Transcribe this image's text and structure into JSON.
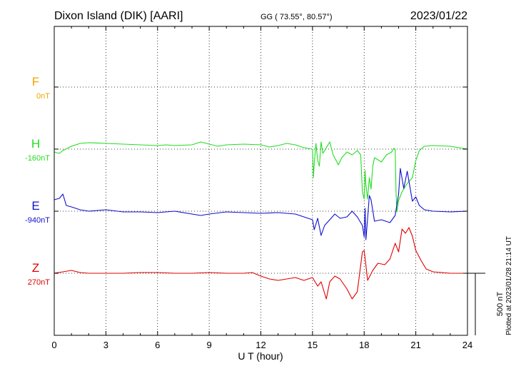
{
  "header": {
    "station": "Dixon Island (DIK)  [AARI]",
    "coords": "GG ( 73.55°,  80.57°)",
    "date": "2023/01/22"
  },
  "plotted_note": "Plotted at 2023/01/28 21:14 UT",
  "chart_data": {
    "type": "line",
    "xlabel": "U T (hour)",
    "xlim": [
      0,
      24
    ],
    "xticks": [
      0,
      3,
      6,
      9,
      12,
      15,
      18,
      21,
      24
    ],
    "scale_label": "500 nT",
    "colors": {
      "F": "#f0a500",
      "H": "#22dd22",
      "E": "#1010d0",
      "Z": "#e00000"
    },
    "components": [
      {
        "key": "F",
        "label": "F",
        "baseline": "0nT",
        "values": null
      },
      {
        "key": "H",
        "label": "H",
        "baseline": "-160nT",
        "points": [
          [
            0,
            -20
          ],
          [
            0.3,
            -30
          ],
          [
            0.5,
            -10
          ],
          [
            1,
            20
          ],
          [
            1.5,
            40
          ],
          [
            2,
            45
          ],
          [
            3,
            40
          ],
          [
            4,
            35
          ],
          [
            5,
            30
          ],
          [
            6,
            25
          ],
          [
            6.5,
            30
          ],
          [
            7,
            25
          ],
          [
            8,
            30
          ],
          [
            8.5,
            50
          ],
          [
            9,
            35
          ],
          [
            9.5,
            20
          ],
          [
            10,
            30
          ],
          [
            11,
            35
          ],
          [
            12,
            30
          ],
          [
            12.5,
            15
          ],
          [
            13,
            25
          ],
          [
            13.5,
            40
          ],
          [
            14,
            30
          ],
          [
            14.5,
            10
          ],
          [
            15,
            0
          ],
          [
            15.05,
            -200
          ],
          [
            15.1,
            -100
          ],
          [
            15.2,
            40
          ],
          [
            15.3,
            -80
          ],
          [
            15.4,
            -120
          ],
          [
            15.5,
            50
          ],
          [
            15.6,
            -30
          ],
          [
            15.8,
            10
          ],
          [
            16,
            50
          ],
          [
            16.2,
            -40
          ],
          [
            16.5,
            -110
          ],
          [
            16.7,
            -60
          ],
          [
            17,
            -20
          ],
          [
            17.3,
            -40
          ],
          [
            17.6,
            -10
          ],
          [
            17.8,
            -40
          ],
          [
            17.9,
            -300
          ],
          [
            18,
            -350
          ],
          [
            18.05,
            -150
          ],
          [
            18.1,
            -250
          ],
          [
            18.2,
            -350
          ],
          [
            18.3,
            -200
          ],
          [
            18.4,
            -280
          ],
          [
            18.5,
            -120
          ],
          [
            18.6,
            -60
          ],
          [
            19,
            -90
          ],
          [
            19.3,
            -40
          ],
          [
            19.6,
            -20
          ],
          [
            19.7,
            5
          ],
          [
            19.8,
            0
          ],
          [
            19.85,
            -300
          ],
          [
            19.9,
            -440
          ],
          [
            20,
            -360
          ],
          [
            20.2,
            -300
          ],
          [
            20.5,
            -240
          ],
          [
            20.8,
            -200
          ],
          [
            21,
            -80
          ],
          [
            21.2,
            -10
          ],
          [
            21.5,
            20
          ],
          [
            22,
            25
          ],
          [
            23,
            20
          ],
          [
            24,
            0
          ]
        ]
      },
      {
        "key": "E",
        "label": "E",
        "baseline": "-940nT",
        "points": [
          [
            0,
            80
          ],
          [
            0.3,
            90
          ],
          [
            0.5,
            120
          ],
          [
            0.7,
            40
          ],
          [
            1,
            30
          ],
          [
            1.5,
            10
          ],
          [
            2,
            0
          ],
          [
            3,
            10
          ],
          [
            4,
            -5
          ],
          [
            5,
            -5
          ],
          [
            6,
            -10
          ],
          [
            7,
            0
          ],
          [
            8,
            -20
          ],
          [
            8.5,
            -30
          ],
          [
            9,
            -20
          ],
          [
            10,
            -5
          ],
          [
            11,
            -10
          ],
          [
            12,
            -15
          ],
          [
            13,
            -10
          ],
          [
            14,
            -20
          ],
          [
            14.5,
            -40
          ],
          [
            15,
            -60
          ],
          [
            15.1,
            -130
          ],
          [
            15.3,
            -50
          ],
          [
            15.5,
            -170
          ],
          [
            15.7,
            -100
          ],
          [
            16,
            -60
          ],
          [
            16.3,
            -20
          ],
          [
            16.6,
            -50
          ],
          [
            17,
            -40
          ],
          [
            17.3,
            0
          ],
          [
            17.6,
            -40
          ],
          [
            17.9,
            -100
          ],
          [
            18,
            -180
          ],
          [
            18.05,
            20
          ],
          [
            18.1,
            -200
          ],
          [
            18.2,
            -50
          ],
          [
            18.3,
            110
          ],
          [
            18.4,
            80
          ],
          [
            18.6,
            -70
          ],
          [
            19,
            -60
          ],
          [
            19.5,
            -80
          ],
          [
            19.8,
            -30
          ],
          [
            20,
            120
          ],
          [
            20.1,
            300
          ],
          [
            20.3,
            160
          ],
          [
            20.5,
            280
          ],
          [
            20.8,
            70
          ],
          [
            21,
            100
          ],
          [
            21.2,
            40
          ],
          [
            21.5,
            10
          ],
          [
            22,
            0
          ],
          [
            23,
            -5
          ],
          [
            24,
            0
          ]
        ]
      },
      {
        "key": "Z",
        "label": "Z",
        "baseline": "270nT",
        "points": [
          [
            0,
            0
          ],
          [
            0.5,
            10
          ],
          [
            1,
            20
          ],
          [
            1.5,
            5
          ],
          [
            2,
            0
          ],
          [
            3,
            0
          ],
          [
            4,
            0
          ],
          [
            5,
            5
          ],
          [
            6,
            5
          ],
          [
            7,
            0
          ],
          [
            8,
            0
          ],
          [
            9,
            5
          ],
          [
            10,
            0
          ],
          [
            11,
            0
          ],
          [
            11.5,
            5
          ],
          [
            12,
            -20
          ],
          [
            12.5,
            -40
          ],
          [
            13,
            -50
          ],
          [
            13.5,
            -40
          ],
          [
            14,
            -30
          ],
          [
            14.5,
            -50
          ],
          [
            15,
            -30
          ],
          [
            15.3,
            -90
          ],
          [
            15.5,
            -60
          ],
          [
            15.8,
            -180
          ],
          [
            16,
            -60
          ],
          [
            16.3,
            -20
          ],
          [
            16.6,
            -40
          ],
          [
            17,
            -110
          ],
          [
            17.3,
            -180
          ],
          [
            17.6,
            -130
          ],
          [
            17.9,
            150
          ],
          [
            18,
            160
          ],
          [
            18.2,
            -50
          ],
          [
            18.5,
            20
          ],
          [
            18.8,
            70
          ],
          [
            19.2,
            60
          ],
          [
            19.5,
            100
          ],
          [
            19.8,
            210
          ],
          [
            20,
            150
          ],
          [
            20.2,
            310
          ],
          [
            20.4,
            280
          ],
          [
            20.6,
            320
          ],
          [
            20.8,
            260
          ],
          [
            21,
            160
          ],
          [
            21.3,
            90
          ],
          [
            21.6,
            30
          ],
          [
            22,
            10
          ],
          [
            23,
            0
          ],
          [
            24,
            0
          ]
        ]
      }
    ]
  }
}
